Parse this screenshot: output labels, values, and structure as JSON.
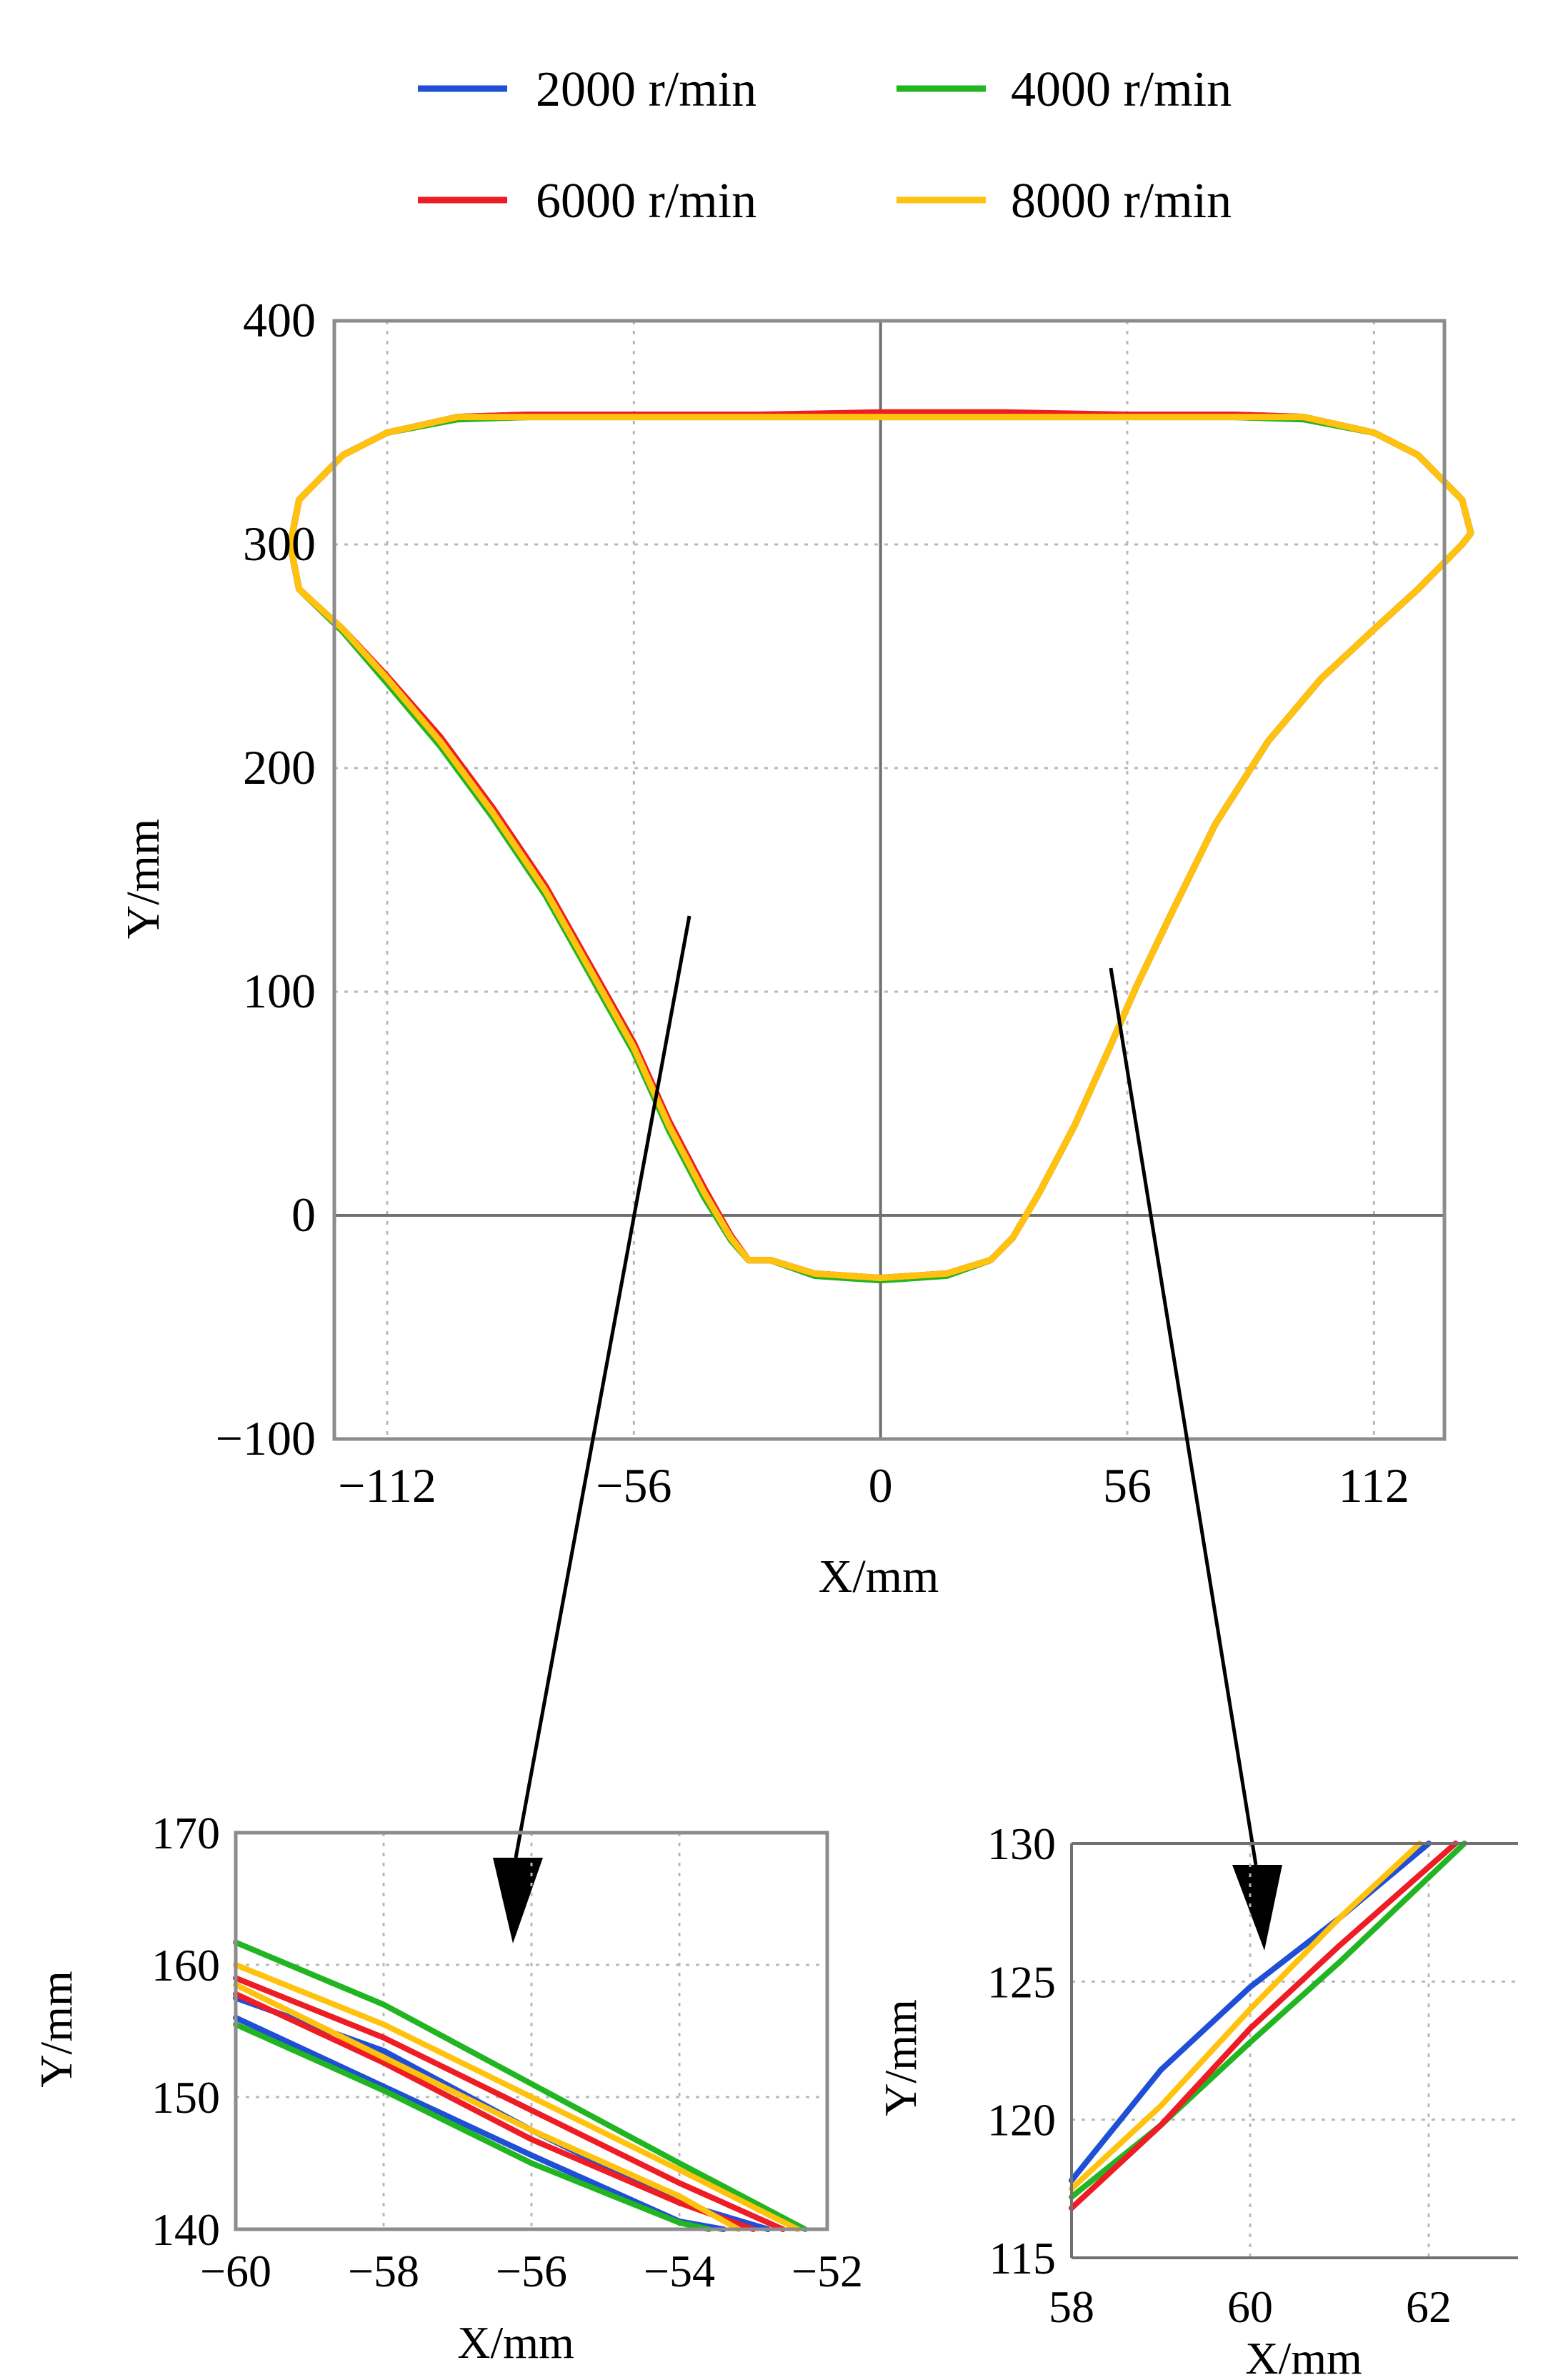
{
  "colors": {
    "2000": "#1f4fd6",
    "4000": "#22b522",
    "6000": "#ee1c24",
    "8000": "#ffc20e"
  },
  "legend": [
    {
      "label": "2000 r/min",
      "color": "#1f4fd6"
    },
    {
      "label": "4000 r/min",
      "color": "#22b522"
    },
    {
      "label": "6000 r/min",
      "color": "#ee1c24"
    },
    {
      "label": "8000 r/min",
      "color": "#ffc20e"
    }
  ],
  "chart_data": [
    {
      "id": "main",
      "type": "line",
      "xlabel": "X/mm",
      "ylabel": "Y/mm",
      "xlim": [
        -124,
        128
      ],
      "ylim": [
        -100,
        400
      ],
      "xticks": [
        -112,
        -56,
        0,
        56,
        112
      ],
      "yticks": [
        -100,
        0,
        100,
        200,
        300,
        400
      ],
      "xtick_labels": [
        "−112",
        "−56",
        "0",
        "56",
        "112"
      ],
      "ytick_labels": [
        "−100",
        "0",
        "100",
        "200",
        "300",
        "400"
      ],
      "grid": true,
      "legend_position": "top",
      "series": [
        {
          "name": "2000 r/min",
          "x": [
            -25,
            -15,
            0,
            15,
            25,
            30,
            36,
            44,
            52,
            58,
            66,
            76,
            88,
            100,
            112,
            122,
            132,
            134,
            132,
            122,
            112,
            96,
            80,
            56,
            28,
            0,
            -28,
            -56,
            -80,
            -96,
            -112,
            -122,
            -132,
            -134,
            -132,
            -122,
            -112,
            -100,
            -88,
            -76,
            -66,
            -56,
            -48,
            -40,
            -34,
            -30,
            -29,
            -28,
            -25
          ],
          "y": [
            -20,
            -26,
            -28,
            -26,
            -20,
            -10,
            10,
            40,
            75,
            102,
            135,
            175,
            212,
            240,
            262,
            280,
            300,
            305,
            320,
            340,
            350,
            357,
            358,
            358,
            358,
            358,
            358,
            358,
            358,
            357,
            350,
            340,
            320,
            300,
            280,
            262,
            240,
            212,
            180,
            145,
            110,
            75,
            40,
            10,
            -10,
            -20,
            -20,
            -20,
            -20
          ]
        },
        {
          "name": "4000 r/min",
          "x": [
            -25,
            -15,
            0,
            15,
            25,
            30,
            36,
            44,
            52,
            58,
            66,
            76,
            88,
            100,
            112,
            122,
            132,
            134,
            132,
            122,
            112,
            96,
            80,
            56,
            28,
            0,
            -28,
            -56,
            -80,
            -96,
            -112,
            -122,
            -132,
            -134,
            -132,
            -122,
            -112,
            -100,
            -88,
            -76,
            -66,
            -56,
            -48,
            -40,
            -34,
            -30,
            -29,
            -28,
            -25
          ],
          "y": [
            -20,
            -27,
            -29,
            -27,
            -20,
            -10,
            10,
            40,
            75,
            102,
            135,
            175,
            212,
            240,
            262,
            280,
            300,
            305,
            320,
            340,
            350,
            356,
            357,
            357,
            357,
            357,
            357,
            357,
            357,
            356,
            350,
            340,
            320,
            300,
            280,
            261,
            238,
            210,
            178,
            143,
            108,
            73,
            38,
            8,
            -11,
            -20,
            -20,
            -20,
            -20
          ]
        },
        {
          "name": "6000 r/min",
          "x": [
            -25,
            -15,
            0,
            15,
            25,
            30,
            36,
            44,
            52,
            58,
            66,
            76,
            88,
            100,
            112,
            122,
            132,
            134,
            132,
            122,
            112,
            96,
            80,
            56,
            28,
            0,
            -28,
            -56,
            -80,
            -96,
            -112,
            -122,
            -132,
            -134,
            -132,
            -122,
            -112,
            -100,
            -88,
            -76,
            -66,
            -56,
            -48,
            -40,
            -34,
            -30,
            -29,
            -28,
            -25
          ],
          "y": [
            -20,
            -26,
            -28,
            -26,
            -20,
            -10,
            10,
            40,
            75,
            102,
            135,
            175,
            212,
            240,
            262,
            280,
            300,
            305,
            320,
            340,
            350,
            357,
            358,
            358,
            359,
            359,
            358,
            358,
            358,
            357,
            350,
            340,
            320,
            300,
            280,
            262,
            241,
            214,
            182,
            147,
            112,
            77,
            42,
            12,
            -9,
            -20,
            -20,
            -20,
            -20
          ]
        },
        {
          "name": "8000 r/min",
          "x": [
            -25,
            -15,
            0,
            15,
            25,
            30,
            36,
            44,
            52,
            58,
            66,
            76,
            88,
            100,
            112,
            122,
            132,
            134,
            132,
            122,
            112,
            96,
            80,
            56,
            28,
            0,
            -28,
            -56,
            -80,
            -96,
            -112,
            -122,
            -132,
            -134,
            -132,
            -122,
            -112,
            -100,
            -88,
            -76,
            -66,
            -56,
            -48,
            -40,
            -34,
            -30,
            -29,
            -28,
            -25
          ],
          "y": [
            -20,
            -26,
            -28,
            -26,
            -20,
            -10,
            10,
            40,
            75,
            102,
            135,
            175,
            212,
            240,
            262,
            280,
            300,
            305,
            320,
            340,
            350,
            357,
            357,
            357,
            357,
            357,
            357,
            357,
            357,
            357,
            350,
            340,
            320,
            300,
            280,
            262,
            240,
            212,
            180,
            145,
            110,
            75,
            40,
            10,
            -10,
            -20,
            -20,
            -20,
            -20
          ]
        }
      ]
    },
    {
      "id": "zoom-left",
      "type": "line",
      "xlabel": "X/mm",
      "ylabel": "Y/mm",
      "xlim": [
        -60,
        -52
      ],
      "ylim": [
        140,
        170
      ],
      "xticks": [
        -60,
        -58,
        -56,
        -54,
        -52
      ],
      "yticks": [
        140,
        150,
        160,
        170
      ],
      "xtick_labels": [
        "−60",
        "−58",
        "−56",
        "−54",
        "−52"
      ],
      "ytick_labels": [
        "140",
        "150",
        "160",
        "170"
      ],
      "grid": true,
      "series": [
        {
          "name": "2000 r/min",
          "x": [
            -60,
            -58,
            -56,
            -54,
            -53.4
          ],
          "y": [
            156,
            150.8,
            145.6,
            140.6,
            140
          ]
        },
        {
          "name": "2000 r/min",
          "x": [
            -60,
            -58,
            -56,
            -54,
            -52.8
          ],
          "y": [
            157.5,
            153.5,
            147.5,
            142,
            140
          ]
        },
        {
          "name": "4000 r/min",
          "x": [
            -60,
            -58,
            -56,
            -54,
            -53.6
          ],
          "y": [
            155.5,
            150.5,
            145,
            140.5,
            140
          ]
        },
        {
          "name": "4000 r/min",
          "x": [
            -60,
            -58,
            -56,
            -54,
            -52.3
          ],
          "y": [
            161.7,
            157,
            151,
            145,
            140
          ]
        },
        {
          "name": "6000 r/min",
          "x": [
            -60,
            -58,
            -56,
            -54,
            -52.6
          ],
          "y": [
            159,
            154.5,
            149,
            143.5,
            140
          ]
        },
        {
          "name": "6000 r/min",
          "x": [
            -60,
            -58,
            -56,
            -54,
            -53
          ],
          "y": [
            157.8,
            152.6,
            146.8,
            142,
            140
          ]
        },
        {
          "name": "8000 r/min",
          "x": [
            -60,
            -58,
            -56,
            -54,
            -52.4
          ],
          "y": [
            160,
            155.5,
            150,
            144.5,
            140
          ]
        },
        {
          "name": "8000 r/min",
          "x": [
            -60,
            -58,
            -56,
            -54,
            -53.2
          ],
          "y": [
            158.5,
            153,
            147.5,
            142.5,
            140
          ]
        }
      ]
    },
    {
      "id": "zoom-right",
      "type": "line",
      "xlabel": "X/mm",
      "ylabel": "Y/mm",
      "xlim": [
        58,
        63
      ],
      "ylim": [
        115,
        130
      ],
      "xticks": [
        58,
        60,
        62
      ],
      "yticks": [
        115,
        120,
        125,
        130
      ],
      "xtick_labels": [
        "58",
        "60",
        "62"
      ],
      "ytick_labels": [
        "115",
        "120",
        "125",
        "130"
      ],
      "grid": true,
      "series": [
        {
          "name": "2000 r/min",
          "x": [
            58,
            59,
            60,
            61,
            62
          ],
          "y": [
            117.8,
            121.8,
            124.8,
            127.3,
            130
          ]
        },
        {
          "name": "4000 r/min",
          "x": [
            58,
            59,
            60,
            61,
            62.4
          ],
          "y": [
            117.2,
            119.8,
            122.8,
            125.7,
            130
          ]
        },
        {
          "name": "6000 r/min",
          "x": [
            58,
            59,
            60,
            61,
            62.3
          ],
          "y": [
            116.8,
            119.8,
            123.3,
            126.3,
            130
          ]
        },
        {
          "name": "8000 r/min",
          "x": [
            58,
            59,
            60,
            61,
            61.9
          ],
          "y": [
            117.5,
            120.5,
            124,
            127.3,
            130
          ]
        }
      ]
    }
  ]
}
